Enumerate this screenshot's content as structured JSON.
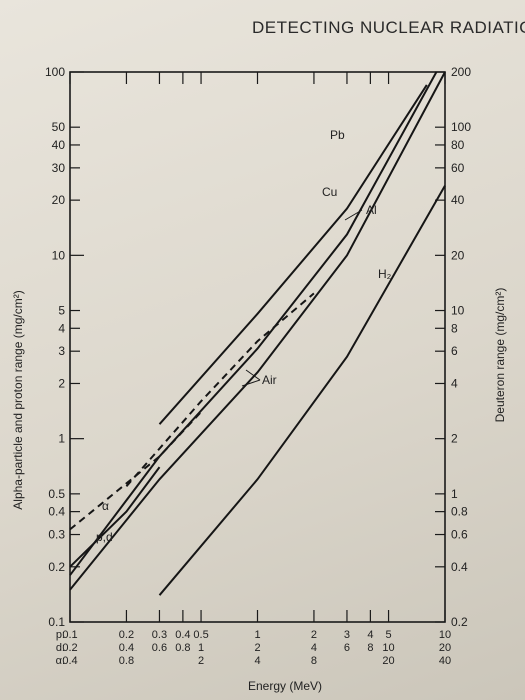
{
  "header": {
    "title": "DETECTING NUCLEAR RADIATIO"
  },
  "chart_data": {
    "type": "line",
    "title": "",
    "xlabel": "Energy (MeV)",
    "ylabel": "Alpha-particle and proton range (mg/cm²)",
    "y2label": "Deuteron range (mg/cm²)",
    "x_scale": "log",
    "y_scale": "log",
    "xlim": [
      0.1,
      10
    ],
    "ylim": [
      0.1,
      100
    ],
    "grid": false,
    "x_ticks": [
      {
        "p": "0.1",
        "d": "0.2",
        "a": "0.4"
      },
      {
        "p": "0.2",
        "d": "0.4",
        "a": "0.8"
      },
      {
        "p": "0.3",
        "d": "0.6",
        "a": ""
      },
      {
        "p": "0.4",
        "d": "0.8",
        "a": ""
      },
      {
        "p": "0.5",
        "d": "1",
        "a": "2"
      },
      {
        "p": "1",
        "d": "2",
        "a": "4"
      },
      {
        "p": "2",
        "d": "4",
        "a": "8"
      },
      {
        "p": "3",
        "d": "6",
        "a": ""
      },
      {
        "p": "4",
        "d": "8",
        "a": ""
      },
      {
        "p": "5",
        "d": "10",
        "a": "20"
      },
      {
        "p": "10",
        "d": "20",
        "a": "40"
      }
    ],
    "x_row_prefixes": [
      "p:",
      "d:",
      "α:"
    ],
    "y_ticks_left": [
      "0.1",
      "0.2",
      "0.3",
      "0.4",
      "0.5",
      "1",
      "2",
      "3",
      "4",
      "5",
      "10",
      "20",
      "30",
      "40",
      "50",
      "100"
    ],
    "y_ticks_right": [
      "0.2",
      "0.4",
      "0.6",
      "0.8",
      "1",
      "2",
      "4",
      "6",
      "8",
      "10",
      "20",
      "40",
      "60",
      "80",
      "100",
      "200"
    ],
    "series": [
      {
        "name": "Pb",
        "x": [
          0.3,
          1,
          3,
          8
        ],
        "y": [
          1.2,
          4.8,
          18,
          85
        ]
      },
      {
        "name": "Cu",
        "x": [
          0.1,
          0.3,
          1,
          3,
          9
        ],
        "y": [
          0.18,
          0.8,
          3.1,
          13,
          100
        ]
      },
      {
        "name": "Al",
        "x": [
          0.1,
          0.3,
          1,
          3,
          10
        ],
        "y": [
          0.15,
          0.6,
          2.3,
          10,
          100
        ]
      },
      {
        "name": "H₂",
        "x": [
          0.3,
          1,
          3,
          10
        ],
        "y": [
          0.14,
          0.6,
          2.8,
          24
        ]
      },
      {
        "name": "Air",
        "x": [
          0.2,
          0.5,
          1,
          2
        ],
        "y": [
          0.55,
          1.6,
          3.4,
          6.2
        ],
        "style": "dashed"
      },
      {
        "name": "α",
        "x": [
          0.1,
          0.3,
          0.5
        ],
        "y": [
          0.32,
          0.8,
          1.4
        ],
        "style": "dashed"
      },
      {
        "name": "p,d",
        "x": [
          0.1,
          0.2,
          0.3
        ],
        "y": [
          0.2,
          0.4,
          0.7
        ]
      }
    ]
  }
}
